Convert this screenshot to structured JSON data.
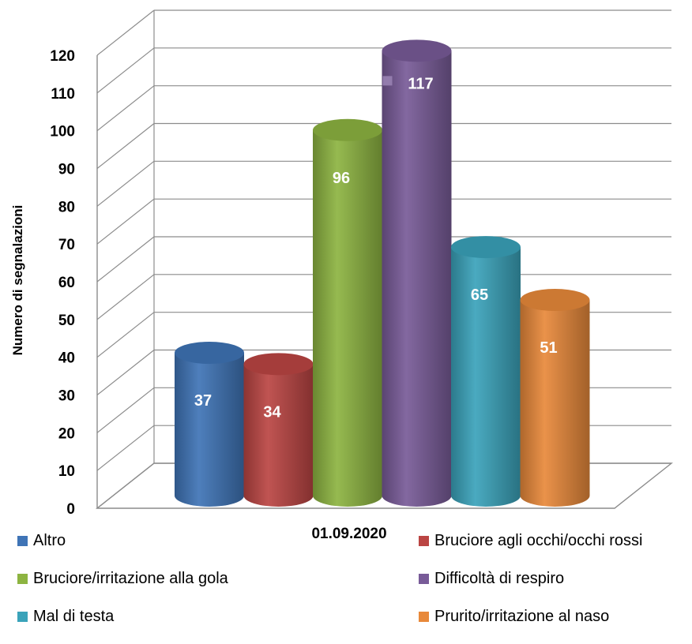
{
  "chart_data": {
    "type": "bar",
    "style": "3d-cylinder",
    "categories": [
      "01.09.2020"
    ],
    "ylabel": "Numero di segnalazioni",
    "ylim": [
      0,
      120
    ],
    "yticks": [
      "0",
      "10",
      "20",
      "30",
      "40",
      "50",
      "60",
      "70",
      "80",
      "90",
      "100",
      "110",
      "120"
    ],
    "grid": true,
    "legend_position": "bottom",
    "series": [
      {
        "name": "Altro",
        "values": [
          37
        ],
        "label": "37",
        "color": "#3f74b6"
      },
      {
        "name": "Bruciore agli occhi/occhi rossi",
        "values": [
          34
        ],
        "label": "34",
        "color": "#bb4543"
      },
      {
        "name": "Bruciore/irritazione alla gola",
        "values": [
          96
        ],
        "label": "96",
        "color": "#8db441"
      },
      {
        "name": "Difficoltà  di respiro",
        "values": [
          117
        ],
        "label": "117",
        "color": "#785b98"
      },
      {
        "name": "Mal di testa",
        "values": [
          65
        ],
        "label": "65",
        "color": "#3aa3ba"
      },
      {
        "name": "Prurito/irritazione al naso",
        "values": [
          51
        ],
        "label": "51",
        "color": "#e8893a"
      }
    ]
  }
}
